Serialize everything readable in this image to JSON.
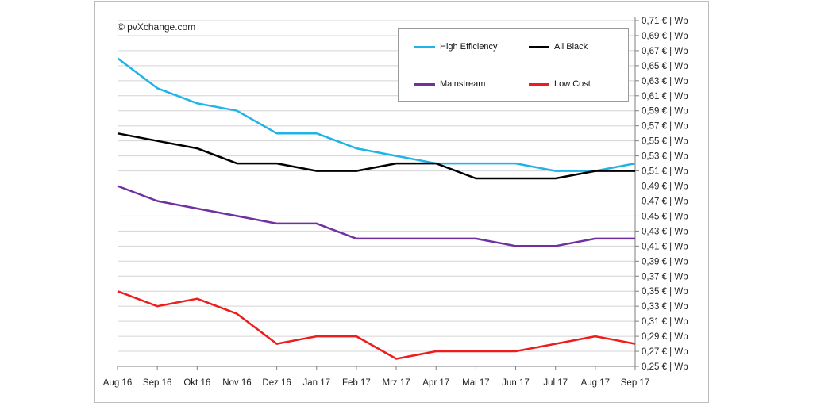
{
  "copyright": "© pvXchange.com",
  "chart_data": {
    "type": "line",
    "categories": [
      "Aug 16",
      "Sep 16",
      "Okt 16",
      "Nov 16",
      "Dez 16",
      "Jan 17",
      "Feb 17",
      "Mrz 17",
      "Apr 17",
      "Mai 17",
      "Jun 17",
      "Jul 17",
      "Aug 17",
      "Sep 17"
    ],
    "y_ticks": [
      "0,25 € | Wp",
      "0,27 € | Wp",
      "0,29 € | Wp",
      "0,31 € | Wp",
      "0,33 € | Wp",
      "0,35 € | Wp",
      "0,37 € | Wp",
      "0,39 € | Wp",
      "0,41 € | Wp",
      "0,43 € | Wp",
      "0,45 € | Wp",
      "0,47 € | Wp",
      "0,49 € | Wp",
      "0,51 € | Wp",
      "0,53 € | Wp",
      "0,55 € | Wp",
      "0,57 € | Wp",
      "0,59 € | Wp",
      "0,61 € | Wp",
      "0,63 € | Wp",
      "0,65 € | Wp",
      "0,67 € | Wp",
      "0,69 € | Wp",
      "0,71 € | Wp"
    ],
    "ylim": [
      0.25,
      0.71
    ],
    "y_axis_side": "right",
    "grid": true,
    "legend_position": "top-right",
    "series": [
      {
        "name": "High Efficiency",
        "color": "#1fb3e8",
        "values": [
          0.66,
          0.62,
          0.6,
          0.59,
          0.56,
          0.56,
          0.54,
          0.53,
          0.52,
          0.52,
          0.52,
          0.51,
          0.51,
          0.52
        ]
      },
      {
        "name": "All Black",
        "color": "#000000",
        "values": [
          0.56,
          0.55,
          0.54,
          0.52,
          0.52,
          0.51,
          0.51,
          0.52,
          0.52,
          0.5,
          0.5,
          0.5,
          0.51,
          0.51
        ]
      },
      {
        "name": "Mainstream",
        "color": "#7030a0",
        "values": [
          0.49,
          0.47,
          0.46,
          0.45,
          0.44,
          0.44,
          0.42,
          0.42,
          0.42,
          0.42,
          0.41,
          0.41,
          0.42,
          0.42
        ]
      },
      {
        "name": "Low Cost",
        "color": "#ee1c1c",
        "values": [
          0.35,
          0.33,
          0.34,
          0.32,
          0.28,
          0.29,
          0.29,
          0.26,
          0.27,
          0.27,
          0.27,
          0.28,
          0.29,
          0.28
        ]
      }
    ]
  }
}
